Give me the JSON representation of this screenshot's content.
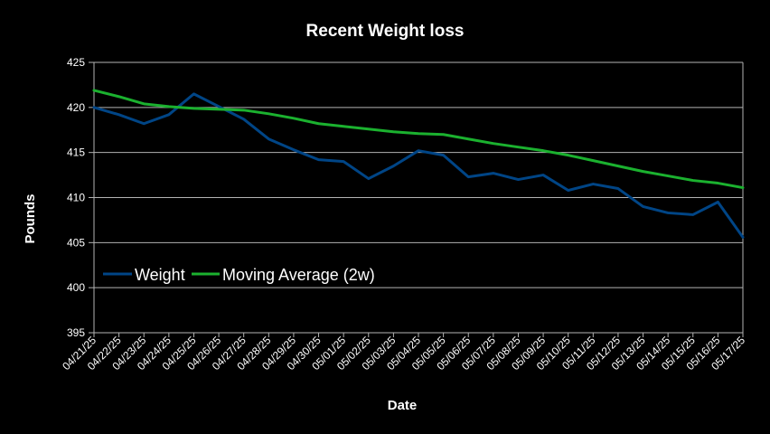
{
  "chart_data": {
    "type": "line",
    "title": "Recent Weight loss",
    "xlabel": "Date",
    "ylabel": "Pounds",
    "ylim": [
      395,
      425
    ],
    "yticks": [
      395,
      400,
      405,
      410,
      415,
      420,
      425
    ],
    "grid": true,
    "legend_position": "left, inside plot",
    "background_color": "#000000",
    "text_color": "#ffffff",
    "gridline_color": "#b3b3b3",
    "categories": [
      "04/21/25",
      "04/22/25",
      "04/23/25",
      "04/24/25",
      "04/25/25",
      "04/26/25",
      "04/27/25",
      "04/28/25",
      "04/29/25",
      "04/30/25",
      "05/01/25",
      "05/02/25",
      "05/03/25",
      "05/04/25",
      "05/05/25",
      "05/06/25",
      "05/07/25",
      "05/08/25",
      "05/09/25",
      "05/10/25",
      "05/11/25",
      "05/12/25",
      "05/13/25",
      "05/14/25",
      "05/15/25",
      "05/16/25",
      "05/17/25"
    ],
    "series": [
      {
        "name": "Weight",
        "color": "#004586",
        "values": [
          420.0,
          419.2,
          418.2,
          419.2,
          421.5,
          420.1,
          418.7,
          416.5,
          415.3,
          414.2,
          414.0,
          412.1,
          413.5,
          415.2,
          414.7,
          412.3,
          412.7,
          412.0,
          412.5,
          410.8,
          411.5,
          411.0,
          409.0,
          408.3,
          408.1,
          409.5,
          405.6
        ]
      },
      {
        "name": "Moving Average (2w)",
        "color": "#1bb12f",
        "values": [
          421.9,
          421.2,
          420.4,
          420.1,
          419.9,
          419.8,
          419.7,
          419.3,
          418.8,
          418.2,
          417.9,
          417.6,
          417.3,
          417.1,
          417.0,
          416.5,
          416.0,
          415.6,
          415.2,
          414.7,
          414.1,
          413.5,
          412.9,
          412.4,
          411.9,
          411.6,
          411.1
        ]
      }
    ]
  }
}
